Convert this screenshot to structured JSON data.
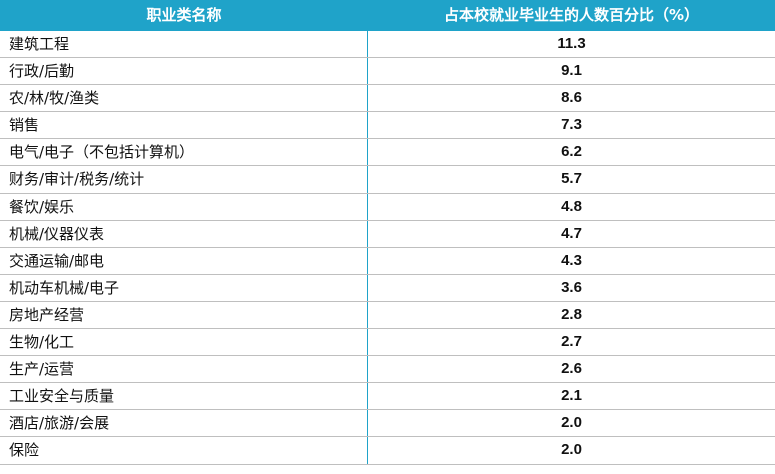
{
  "colors": {
    "header_bg": "#1fa3c9",
    "header_text": "#ffffff",
    "divider": "#bfbfbf"
  },
  "table": {
    "headers": [
      "职业类名称",
      "占本校就业毕业生的人数百分比（%）"
    ],
    "rows": [
      {
        "name": "建筑工程",
        "value": "11.3"
      },
      {
        "name": "行政/后勤",
        "value": "9.1"
      },
      {
        "name": "农/林/牧/渔类",
        "value": "8.6"
      },
      {
        "name": "销售",
        "value": "7.3"
      },
      {
        "name": "电气/电子（不包括计算机）",
        "value": "6.2"
      },
      {
        "name": "财务/审计/税务/统计",
        "value": "5.7"
      },
      {
        "name": "餐饮/娱乐",
        "value": "4.8"
      },
      {
        "name": "机械/仪器仪表",
        "value": "4.7"
      },
      {
        "name": "交通运输/邮电",
        "value": "4.3"
      },
      {
        "name": "机动车机械/电子",
        "value": "3.6"
      },
      {
        "name": "房地产经营",
        "value": "2.8"
      },
      {
        "name": "生物/化工",
        "value": "2.7"
      },
      {
        "name": "生产/运营",
        "value": "2.6"
      },
      {
        "name": "工业安全与质量",
        "value": "2.1"
      },
      {
        "name": "酒店/旅游/会展",
        "value": "2.0"
      },
      {
        "name": "保险",
        "value": "2.0"
      }
    ]
  }
}
